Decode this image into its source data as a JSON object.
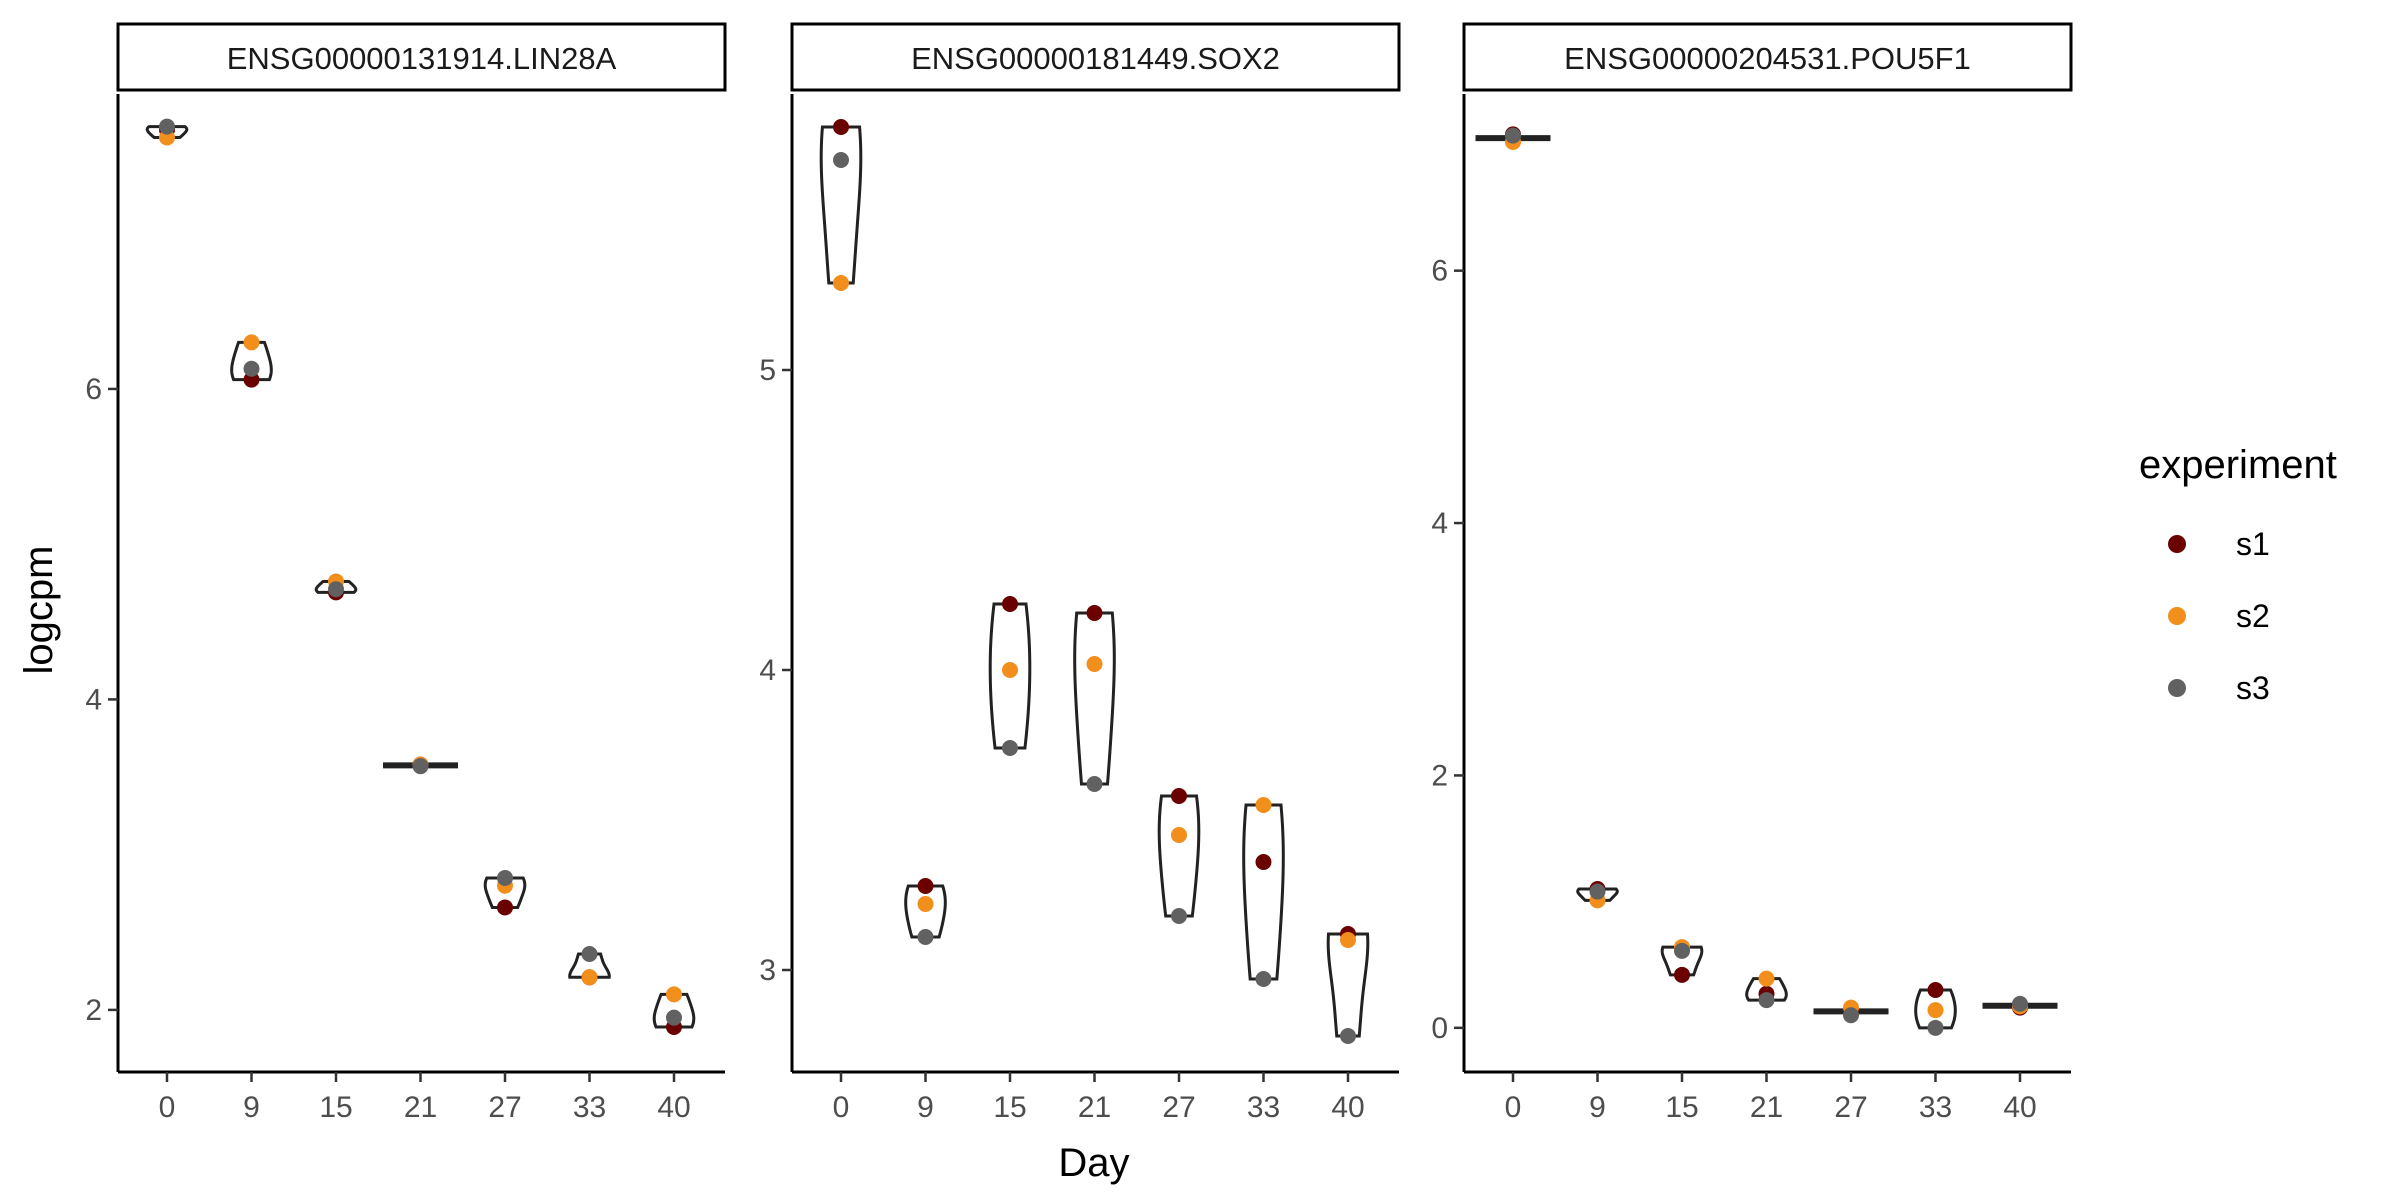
{
  "chart_data": {
    "type": "violin-scatter",
    "xlabel": "Day",
    "ylabel": "logcpm",
    "legend": {
      "title": "experiment",
      "position": "right",
      "entries": [
        {
          "name": "s1",
          "color": "#6B0000"
        },
        {
          "name": "s2",
          "color": "#F28E1C"
        },
        {
          "name": "s3",
          "color": "#616161"
        }
      ]
    },
    "categories": [
      "0",
      "9",
      "15",
      "21",
      "27",
      "33",
      "40"
    ],
    "grid": false,
    "panels": [
      {
        "title": "ENSG00000131914.LIN28A",
        "ylim": [
          1.6,
          7.9
        ],
        "yticks": [
          2,
          4,
          6
        ],
        "series": [
          {
            "name": "s1",
            "values": [
              7.67,
              6.06,
              4.69,
              3.58,
              2.66,
              2.21,
              1.89
            ]
          },
          {
            "name": "s2",
            "values": [
              7.62,
              6.3,
              4.76,
              3.58,
              2.8,
              2.21,
              2.1
            ]
          },
          {
            "name": "s3",
            "values": [
              7.69,
              6.13,
              4.71,
              3.57,
              2.85,
              2.36,
              1.95
            ]
          }
        ]
      },
      {
        "title": "ENSG00000181449.SOX2",
        "ylim": [
          2.66,
          5.92
        ],
        "yticks": [
          3,
          4,
          5
        ],
        "series": [
          {
            "name": "s1",
            "values": [
              5.81,
              3.28,
              4.22,
              4.19,
              3.58,
              3.36,
              3.12
            ]
          },
          {
            "name": "s2",
            "values": [
              5.29,
              3.22,
              4.0,
              4.02,
              3.45,
              3.55,
              3.1
            ]
          },
          {
            "name": "s3",
            "values": [
              5.7,
              3.11,
              3.74,
              3.62,
              3.18,
              2.97,
              2.78
            ]
          }
        ]
      },
      {
        "title": "ENSG00000204531.POU5F1",
        "ylim": [
          -0.35,
          7.4
        ],
        "yticks": [
          0,
          2,
          4,
          6
        ],
        "series": [
          {
            "name": "s1",
            "values": [
              7.08,
              1.1,
              0.42,
              0.27,
              0.14,
              0.3,
              0.16
            ]
          },
          {
            "name": "s2",
            "values": [
              7.02,
              1.01,
              0.64,
              0.39,
              0.16,
              0.14,
              0.17
            ]
          },
          {
            "name": "s3",
            "values": [
              7.07,
              1.08,
              0.61,
              0.22,
              0.1,
              0.0,
              0.19
            ]
          }
        ]
      }
    ]
  }
}
